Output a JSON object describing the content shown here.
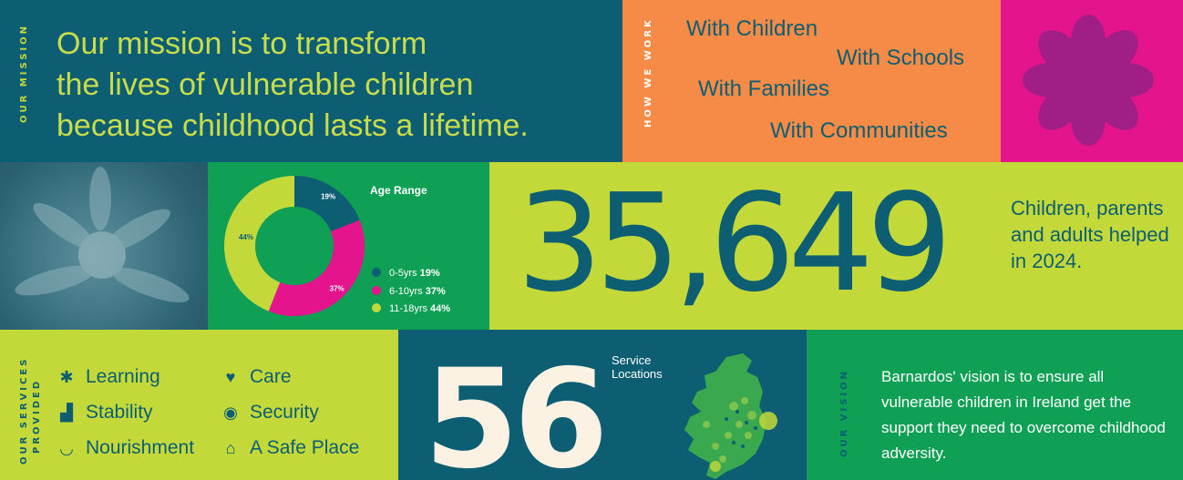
{
  "mission": {
    "label": "OUR MISSION",
    "line1": "Our mission is to transform",
    "line2": "the lives of vulnerable children",
    "line3": "because childhood lasts a lifetime."
  },
  "how_we_work": {
    "label": "HOW WE WORK",
    "items": [
      "With Children",
      "With Schools",
      "With Families",
      "With Communities"
    ]
  },
  "age_range": {
    "title": "Age Range",
    "legend": [
      {
        "label": "0-5yrs",
        "value": "19%",
        "color": "#0d5e72"
      },
      {
        "label": "6-10yrs",
        "value": "37%",
        "color": "#e4148c"
      },
      {
        "label": "11-18yrs",
        "value": "44%",
        "color": "#c3d93a"
      }
    ]
  },
  "chart_data": {
    "type": "pie",
    "title": "Age Range",
    "categories": [
      "0-5yrs",
      "6-10yrs",
      "11-18yrs"
    ],
    "values": [
      19,
      37,
      44
    ],
    "labels": [
      "19%",
      "37%",
      "44%"
    ],
    "colors": [
      "#0d5e72",
      "#e4148c",
      "#c3d93a"
    ],
    "legend": "right"
  },
  "stat": {
    "number": "35,649",
    "caption": "Children, parents and adults helped in 2024."
  },
  "services": {
    "label_line1": "OUR SERVICES",
    "label_line2": "PROVIDED",
    "items": [
      {
        "label": "Learning",
        "icon": "flower-icon"
      },
      {
        "label": "Care",
        "icon": "heart-icon"
      },
      {
        "label": "Stability",
        "icon": "blocks-icon"
      },
      {
        "label": "Security",
        "icon": "target-icon"
      },
      {
        "label": "Nourishment",
        "icon": "bowl-icon"
      },
      {
        "label": "A Safe Place",
        "icon": "house-icon"
      }
    ]
  },
  "locations": {
    "number": "56",
    "label_line1": "Service",
    "label_line2": "Locations"
  },
  "vision": {
    "label": "OUR VISION",
    "text": "Barnardos' vision is to ensure all vulnerable children in Ireland get the support they need to overcome childhood adversity."
  }
}
